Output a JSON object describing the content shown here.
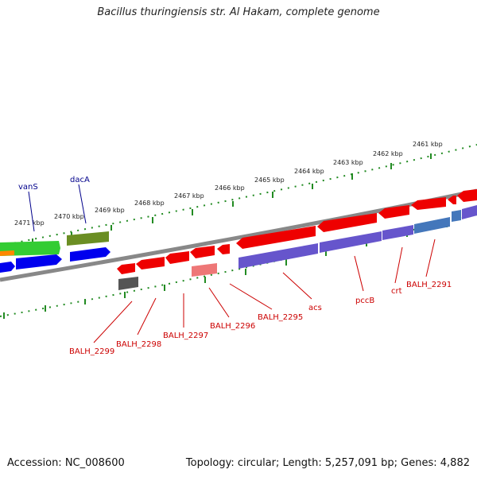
{
  "title": "Bacillus thuringiensis str. Al Hakam, complete genome",
  "footer": {
    "accession": "Accession: NC_008600",
    "summary": "Topology: circular; Length: 5,257,091 bp; Genes: 4,882"
  },
  "kbp_ticks": [
    {
      "label": "2471 kbp"
    },
    {
      "label": "2470 kbp"
    },
    {
      "label": "2469 kbp"
    },
    {
      "label": "2468 kbp"
    },
    {
      "label": "2467 kbp"
    },
    {
      "label": "2466 kbp"
    },
    {
      "label": "2465 kbp"
    },
    {
      "label": "2464 kbp"
    },
    {
      "label": "2463 kbp"
    },
    {
      "label": "2462 kbp"
    },
    {
      "label": "2461 kbp"
    }
  ],
  "forward_genes": [
    {
      "label": "vanS",
      "color": "#00008b"
    },
    {
      "label": "dacA",
      "color": "#00008b"
    }
  ],
  "reverse_genes": [
    {
      "label": "BALH_2299",
      "color": "#cc0000"
    },
    {
      "label": "BALH_2298",
      "color": "#cc0000"
    },
    {
      "label": "BALH_2297",
      "color": "#cc0000"
    },
    {
      "label": "BALH_2296",
      "color": "#cc0000"
    },
    {
      "label": "BALH_2295",
      "color": "#cc0000"
    },
    {
      "label": "acs",
      "color": "#cc0000"
    },
    {
      "label": "pccB",
      "color": "#cc0000"
    },
    {
      "label": "crt",
      "color": "#cc0000"
    },
    {
      "label": "BALH_2291",
      "color": "#cc0000"
    }
  ],
  "colors": {
    "cds_reverse": "#ee0000",
    "cds_forward_green": "#33cc33",
    "cds_forward_olive": "#6b8e23",
    "blast_blue": "#0000ee",
    "blast_purple": "#6655cc",
    "backbone": "#888888",
    "tick_green": "#228b22"
  }
}
